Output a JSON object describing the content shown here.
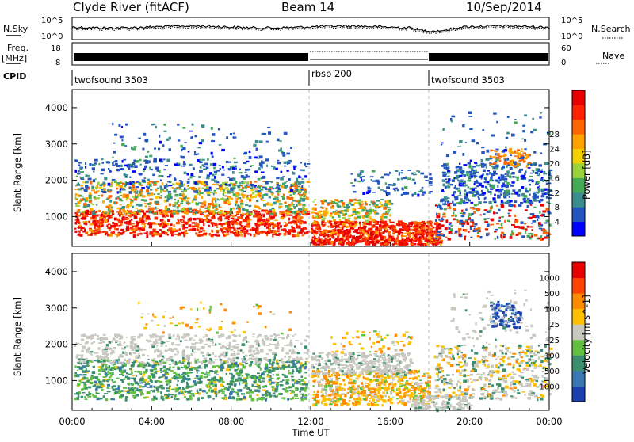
{
  "header": {
    "station": "Clyde River (fitACF)",
    "beam": "Beam 14",
    "date": "10/Sep/2014"
  },
  "top_panels": {
    "nsky_label": "N.Sky",
    "nsky_ticks": [
      "10^5",
      "10^0"
    ],
    "nsearch_label": "N.Search",
    "freq_label": "Freq.",
    "freq_unit": "[MHz]",
    "freq_ticks": [
      "18",
      "8"
    ],
    "nave_label": "Nave",
    "nave_ticks": [
      "60",
      "0"
    ],
    "cpid_label": "CPID",
    "cpid_segments": [
      {
        "start": 0,
        "end": 12,
        "name": "twofsound 3503"
      },
      {
        "start": 12,
        "end": 18,
        "name": "rbsp 200"
      },
      {
        "start": 18,
        "end": 24,
        "name": "twofsound 3503"
      }
    ]
  },
  "chart_data": [
    {
      "type": "heatmap",
      "name": "power",
      "ylabel": "Slant Range [km]",
      "yticks": [
        "1000",
        "2000",
        "3000",
        "4000"
      ],
      "ylim": [
        180,
        4500
      ],
      "xlim": [
        0,
        24
      ],
      "colorbar": {
        "label": "Power [dB]",
        "ticks": [
          "4",
          "8",
          "12",
          "16",
          "20",
          "24",
          "28"
        ],
        "colors": [
          "#0000ff",
          "#2255c0",
          "#3c8e8e",
          "#44aa55",
          "#9ad23a",
          "#f3d000",
          "#ffa200",
          "#ff6600",
          "#ff2200",
          "#e80000"
        ]
      }
    },
    {
      "type": "heatmap",
      "name": "velocity",
      "ylabel": "Slant Range [km]",
      "yticks": [
        "1000",
        "2000",
        "3000",
        "4000"
      ],
      "ylim": [
        180,
        4500
      ],
      "xlim": [
        0,
        24
      ],
      "xticks": [
        "00:00",
        "04:00",
        "08:00",
        "12:00",
        "16:00",
        "20:00",
        "00:00"
      ],
      "xlabel": "Time UT",
      "colorbar": {
        "label": "Velocity [m s^-1]",
        "ticks": [
          "1000",
          "500",
          "100",
          "25",
          "-25",
          "-100",
          "-500",
          "-1000"
        ],
        "colors": [
          "#1c3fb0",
          "#3a78b4",
          "#3b8f6f",
          "#62c040",
          "#c8c8c0",
          "#ffc000",
          "#ff8c00",
          "#ff4400",
          "#e80000"
        ]
      }
    }
  ]
}
